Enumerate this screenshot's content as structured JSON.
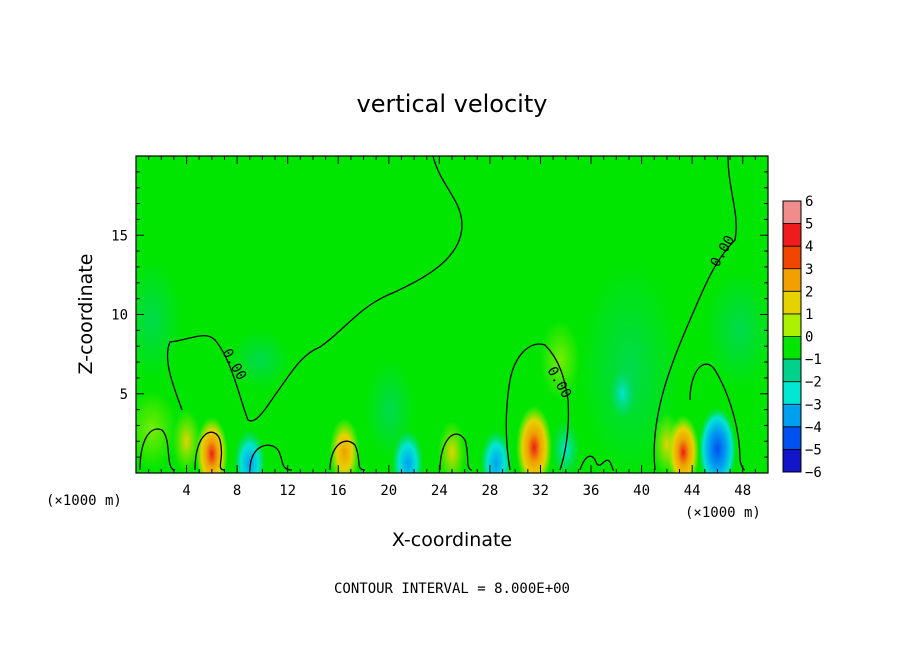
{
  "chart_data": {
    "type": "heatmap",
    "title": "vertical velocity",
    "xlabel": "X-coordinate",
    "ylabel": "Z-coordinate",
    "x_unit": "(×1000 m)",
    "z_unit": "(×1000 m)",
    "xlim": [
      0,
      50
    ],
    "ylim": [
      0,
      20
    ],
    "x_ticks": [
      4,
      8,
      12,
      16,
      20,
      24,
      28,
      32,
      36,
      40,
      44,
      48
    ],
    "y_ticks": [
      5,
      10,
      15
    ],
    "contour_interval_text": "CONTOUR INTERVAL = 8.000E+00",
    "contour_label": "0.00",
    "colorbar": {
      "levels": [
        6,
        5,
        4,
        3,
        2,
        1,
        0,
        -1,
        -2,
        -3,
        -4,
        -5,
        -6
      ],
      "colors": [
        "#f08c8c",
        "#ee1c1c",
        "#f04600",
        "#f0a000",
        "#e6d200",
        "#aaf000",
        "#00e600",
        "#00d28c",
        "#00e6d2",
        "#00a0f0",
        "#0050f0",
        "#1414c8",
        "#7814b4"
      ]
    },
    "background_color": "#00e600",
    "updrafts": [
      {
        "x": 4.0,
        "z": 2.0,
        "w": 2.0
      },
      {
        "x": 6.0,
        "z": 1.2,
        "w": 3.0
      },
      {
        "x": 16.5,
        "z": 1.3,
        "w": 2.5
      },
      {
        "x": 25.0,
        "z": 1.3,
        "w": 2.0
      },
      {
        "x": 31.5,
        "z": 1.6,
        "w": 4.0
      },
      {
        "x": 42.0,
        "z": 1.8,
        "w": 2.0
      },
      {
        "x": 43.3,
        "z": 1.3,
        "w": 3.0
      }
    ],
    "downdrafts": [
      {
        "x": 9.0,
        "z": 0.6,
        "w": -2.0
      },
      {
        "x": 21.5,
        "z": 0.6,
        "w": -2.0
      },
      {
        "x": 28.5,
        "z": 0.6,
        "w": -2.0
      },
      {
        "x": 34.0,
        "z": 1.5,
        "w": -1.5
      },
      {
        "x": 46.0,
        "z": 1.5,
        "w": -3.0
      },
      {
        "x": 38.5,
        "z": 5.0,
        "w": -1.0
      }
    ]
  }
}
